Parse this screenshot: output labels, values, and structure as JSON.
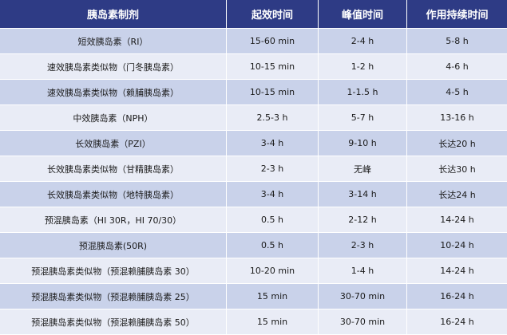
{
  "table": {
    "headers": [
      "胰岛素制剂",
      "起效时间",
      "峰值时间",
      "作用持续时间"
    ],
    "rows": [
      [
        "短效胰岛素（RI）",
        "15-60 min",
        "2-4 h",
        "5-8 h"
      ],
      [
        "速效胰岛素类似物（门冬胰岛素）",
        "10-15 min",
        "1-2 h",
        "4-6 h"
      ],
      [
        "速效胰岛素类似物（赖脯胰岛素）",
        "10-15 min",
        "1-1.5 h",
        "4-5 h"
      ],
      [
        "中效胰岛素（NPH）",
        "2.5-3 h",
        "5-7 h",
        "13-16 h"
      ],
      [
        "长效胰岛素（PZI）",
        "3-4 h",
        "9-10 h",
        "长达20 h"
      ],
      [
        "长效胰岛素类似物（甘精胰岛素）",
        "2-3 h",
        "无峰",
        "长达30 h"
      ],
      [
        "长效胰岛素类似物（地特胰岛素）",
        "3-4 h",
        "3-14 h",
        "长达24 h"
      ],
      [
        "预混胰岛素（HI 30R，HI 70/30）",
        "0.5 h",
        "2-12 h",
        "14-24 h"
      ],
      [
        "预混胰岛素(50R)",
        "0.5 h",
        "2-3 h",
        "10-24 h"
      ],
      [
        "预混胰岛素类似物（预混赖脯胰岛素 30）",
        "10-20 min",
        "1-4 h",
        "14-24 h"
      ],
      [
        "预混胰岛素类似物（预混赖脯胰岛素 25）",
        "15 min",
        "30-70 min",
        "16-24 h"
      ],
      [
        "预混胰岛素类似物（预混赖脯胰岛素 50）",
        "15 min",
        "30-70 min",
        "16-24 h"
      ]
    ]
  },
  "colors": {
    "header_bg": "#2e3b85",
    "row_dark": "#c9d2ea",
    "row_light": "#e9ecf6"
  }
}
